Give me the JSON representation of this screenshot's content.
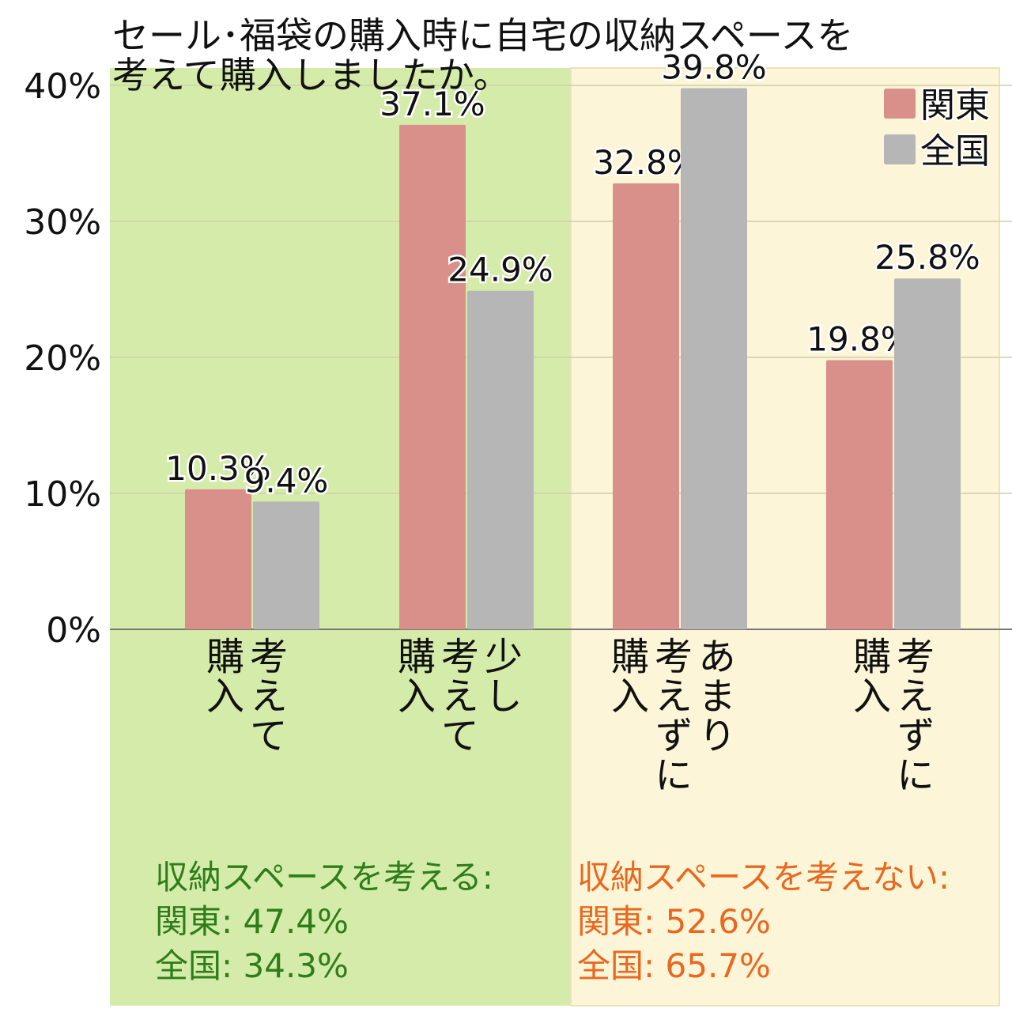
{
  "chart_data": {
    "type": "bar",
    "title": "セール･福袋の購入時に自宅の収納スペースを\n考えて購入しましたか。",
    "categories": [
      "考えて\n購入",
      "少し\n考えて\n購入",
      "あまり\n考えずに\n購入",
      "考えずに\n購入"
    ],
    "series": [
      {
        "name": "関東",
        "color": "#d9908a",
        "values": [
          10.3,
          37.1,
          32.8,
          19.8
        ]
      },
      {
        "name": "全国",
        "color": "#b6b6b6",
        "values": [
          9.4,
          24.9,
          39.8,
          25.8
        ]
      }
    ],
    "data_labels": [
      [
        "10.3%",
        "37.1%",
        "32.8%",
        "19.8%"
      ],
      [
        "9.4%",
        "24.9%",
        "39.8%",
        "25.8%"
      ]
    ],
    "ylim": [
      0,
      40
    ],
    "yticks": [
      "0%",
      "10%",
      "20%",
      "30%",
      "40%"
    ],
    "grid": true,
    "legend": "top-right",
    "groups": [
      {
        "background": "#d5ebaa",
        "text_color": "#2e7d1b",
        "lines": [
          "収納スペースを考える:",
          "関東: 47.4%",
          "全国: 34.3%"
        ]
      },
      {
        "background": "#fdf5d8",
        "text_color": "#e8681f",
        "lines": [
          "収納スペースを考えない:",
          "関東: 52.6%",
          "全国: 65.7%"
        ]
      }
    ]
  }
}
